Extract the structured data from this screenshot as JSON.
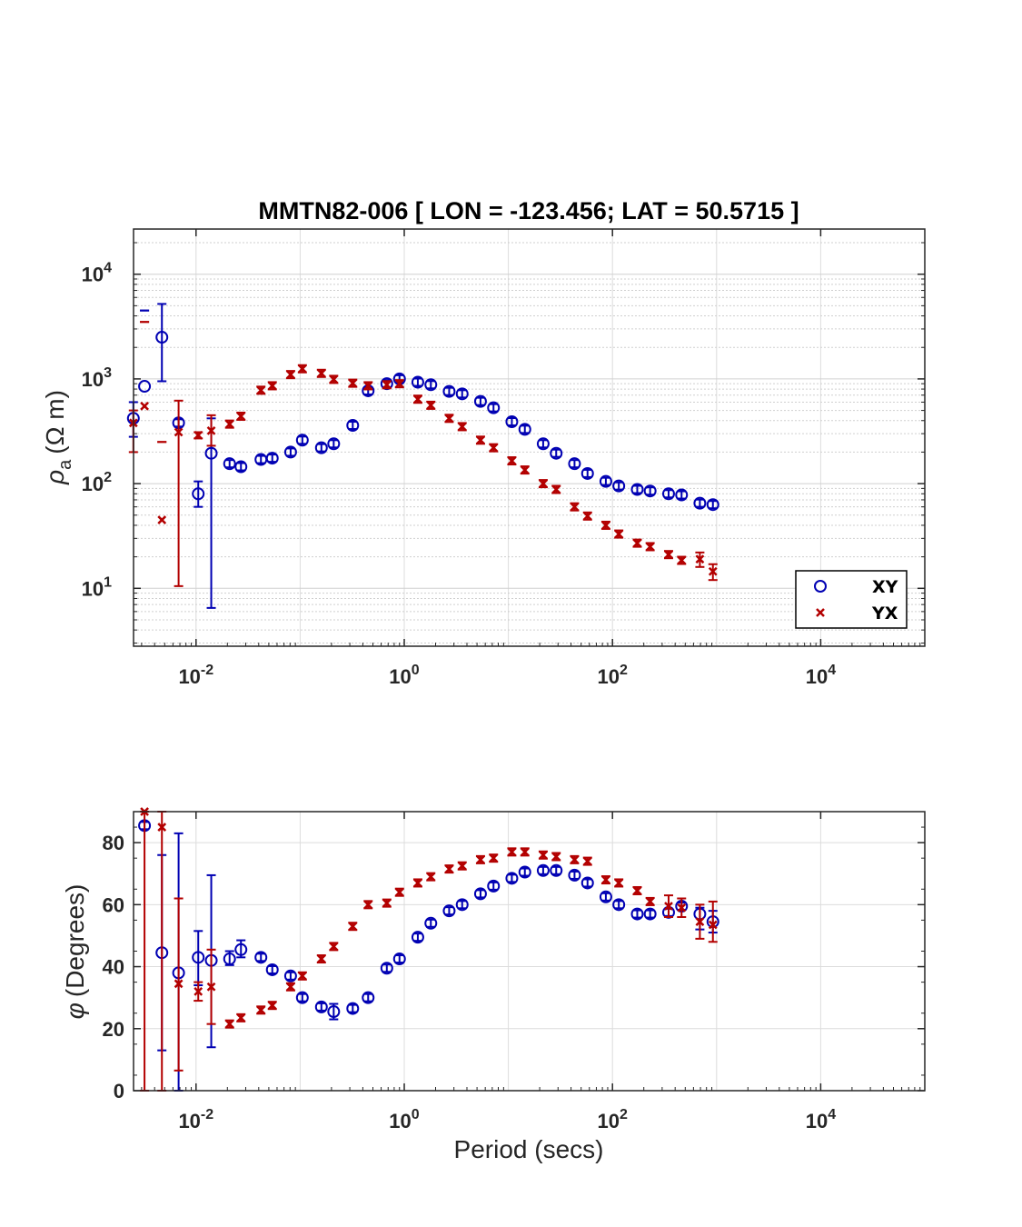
{
  "chart_data": [
    {
      "type": "scatter",
      "title": "MMTN82-006 [ LON = -123.456; LAT = 50.5715 ]",
      "ylabel": "ρa (Ω m)",
      "ylabel_parts": {
        "rho": "ρ",
        "sub": "a",
        "units": "(Ω m)"
      },
      "xlabel": "",
      "xscale": "log",
      "yscale": "log",
      "xlim": [
        0.00251,
        100000
      ],
      "ylim": [
        2.8,
        27000
      ],
      "xticks": [
        {
          "base": "10",
          "exp": "-2",
          "value": 0.01
        },
        {
          "base": "10",
          "exp": "0",
          "value": 1
        },
        {
          "base": "10",
          "exp": "2",
          "value": 100
        },
        {
          "base": "10",
          "exp": "4",
          "value": 10000
        }
      ],
      "yticks": [
        {
          "base": "10",
          "exp": "1",
          "value": 10
        },
        {
          "base": "10",
          "exp": "2",
          "value": 100
        },
        {
          "base": "10",
          "exp": "3",
          "value": 1000
        },
        {
          "base": "10",
          "exp": "4",
          "value": 10000
        }
      ],
      "grid": true,
      "legend": {
        "position": "lower-right",
        "entries": [
          "XY",
          "YX"
        ]
      },
      "series": [
        {
          "name": "XY",
          "color": "#0000b3",
          "marker": "circle",
          "points": [
            {
              "x": 0.0025,
              "y": 420,
              "lo": 280,
              "hi": 600
            },
            {
              "x": 0.0032,
              "y": 850,
              "lo": 4500,
              "hi": 4500
            },
            {
              "x": 0.0047,
              "y": 2500,
              "lo": 950,
              "hi": 5200
            },
            {
              "x": 0.0068,
              "y": 380
            },
            {
              "x": 0.0105,
              "y": 80,
              "lo": 60,
              "hi": 105
            },
            {
              "x": 0.014,
              "y": 195,
              "lo": 6.5,
              "hi": 420
            },
            {
              "x": 0.021,
              "y": 155
            },
            {
              "x": 0.027,
              "y": 145
            },
            {
              "x": 0.042,
              "y": 170
            },
            {
              "x": 0.054,
              "y": 175
            },
            {
              "x": 0.081,
              "y": 200
            },
            {
              "x": 0.105,
              "y": 260
            },
            {
              "x": 0.16,
              "y": 220
            },
            {
              "x": 0.21,
              "y": 240
            },
            {
              "x": 0.32,
              "y": 360
            },
            {
              "x": 0.45,
              "y": 770
            },
            {
              "x": 0.68,
              "y": 900
            },
            {
              "x": 0.9,
              "y": 1000
            },
            {
              "x": 1.35,
              "y": 930
            },
            {
              "x": 1.8,
              "y": 880
            },
            {
              "x": 2.7,
              "y": 760
            },
            {
              "x": 3.6,
              "y": 720
            },
            {
              "x": 5.4,
              "y": 610
            },
            {
              "x": 7.2,
              "y": 530
            },
            {
              "x": 10.8,
              "y": 390
            },
            {
              "x": 14.4,
              "y": 330
            },
            {
              "x": 21.6,
              "y": 240
            },
            {
              "x": 28.8,
              "y": 195
            },
            {
              "x": 43.2,
              "y": 155
            },
            {
              "x": 57.6,
              "y": 125
            },
            {
              "x": 86.4,
              "y": 105
            },
            {
              "x": 115,
              "y": 95
            },
            {
              "x": 173,
              "y": 88
            },
            {
              "x": 230,
              "y": 85
            },
            {
              "x": 346,
              "y": 80
            },
            {
              "x": 461,
              "y": 78
            },
            {
              "x": 691,
              "y": 65
            },
            {
              "x": 922,
              "y": 63
            }
          ]
        },
        {
          "name": "YX",
          "color": "#b30000",
          "marker": "x",
          "points": [
            {
              "x": 0.0025,
              "y": 380,
              "lo": 200,
              "hi": 500
            },
            {
              "x": 0.0032,
              "y": 550,
              "lo": 3500,
              "hi": 3500
            },
            {
              "x": 0.0047,
              "y": 45,
              "lo": 250,
              "hi": 250
            },
            {
              "x": 0.0068,
              "y": 310,
              "lo": 10.5,
              "hi": 620
            },
            {
              "x": 0.0105,
              "y": 290,
              "lo": 270,
              "hi": 310
            },
            {
              "x": 0.014,
              "y": 320,
              "lo": 230,
              "hi": 450
            },
            {
              "x": 0.021,
              "y": 370
            },
            {
              "x": 0.027,
              "y": 440
            },
            {
              "x": 0.042,
              "y": 780
            },
            {
              "x": 0.054,
              "y": 860
            },
            {
              "x": 0.081,
              "y": 1100
            },
            {
              "x": 0.105,
              "y": 1250
            },
            {
              "x": 0.16,
              "y": 1130
            },
            {
              "x": 0.21,
              "y": 990
            },
            {
              "x": 0.32,
              "y": 910
            },
            {
              "x": 0.45,
              "y": 860
            },
            {
              "x": 0.68,
              "y": 880
            },
            {
              "x": 0.9,
              "y": 900
            },
            {
              "x": 1.35,
              "y": 640
            },
            {
              "x": 1.8,
              "y": 560
            },
            {
              "x": 2.7,
              "y": 420
            },
            {
              "x": 3.6,
              "y": 350
            },
            {
              "x": 5.4,
              "y": 260
            },
            {
              "x": 7.2,
              "y": 220
            },
            {
              "x": 10.8,
              "y": 165
            },
            {
              "x": 14.4,
              "y": 135
            },
            {
              "x": 21.6,
              "y": 100
            },
            {
              "x": 28.8,
              "y": 88
            },
            {
              "x": 43.2,
              "y": 60
            },
            {
              "x": 57.6,
              "y": 49
            },
            {
              "x": 86.4,
              "y": 40
            },
            {
              "x": 115,
              "y": 33
            },
            {
              "x": 173,
              "y": 27
            },
            {
              "x": 230,
              "y": 25
            },
            {
              "x": 346,
              "y": 21
            },
            {
              "x": 461,
              "y": 18.5
            },
            {
              "x": 691,
              "y": 19,
              "lo": 16,
              "hi": 22
            },
            {
              "x": 922,
              "y": 14.5,
              "lo": 12,
              "hi": 17
            }
          ]
        }
      ]
    },
    {
      "type": "scatter",
      "title": "",
      "ylabel": "φ (Degrees)",
      "ylabel_parts": {
        "phi": "φ",
        "units": "(Degrees)"
      },
      "xlabel": "Period (secs)",
      "xscale": "log",
      "yscale": "linear",
      "xlim": [
        0.00251,
        100000
      ],
      "ylim": [
        0,
        90
      ],
      "xticks": [
        {
          "base": "10",
          "exp": "-2",
          "value": 0.01
        },
        {
          "base": "10",
          "exp": "0",
          "value": 1
        },
        {
          "base": "10",
          "exp": "2",
          "value": 100
        },
        {
          "base": "10",
          "exp": "4",
          "value": 10000
        }
      ],
      "yticks": [
        {
          "label": "0",
          "value": 0
        },
        {
          "label": "20",
          "value": 20
        },
        {
          "label": "40",
          "value": 40
        },
        {
          "label": "60",
          "value": 60
        },
        {
          "label": "80",
          "value": 80
        }
      ],
      "grid": true,
      "series": [
        {
          "name": "XY",
          "color": "#0000b3",
          "marker": "circle",
          "points": [
            {
              "x": 0.0032,
              "y": 85.5
            },
            {
              "x": 0.0047,
              "y": 44.5,
              "lo": 13,
              "hi": 76
            },
            {
              "x": 0.0068,
              "y": 38,
              "lo": 0,
              "hi": 83
            },
            {
              "x": 0.0105,
              "y": 43,
              "lo": 34,
              "hi": 51.5
            },
            {
              "x": 0.014,
              "y": 42,
              "lo": 14,
              "hi": 69.5
            },
            {
              "x": 0.021,
              "y": 42.5,
              "lo": 40.5,
              "hi": 45
            },
            {
              "x": 0.027,
              "y": 45.5,
              "lo": 43,
              "hi": 48.5
            },
            {
              "x": 0.042,
              "y": 43
            },
            {
              "x": 0.054,
              "y": 39
            },
            {
              "x": 0.081,
              "y": 37
            },
            {
              "x": 0.105,
              "y": 30
            },
            {
              "x": 0.16,
              "y": 27
            },
            {
              "x": 0.21,
              "y": 25.5,
              "lo": 23,
              "hi": 28
            },
            {
              "x": 0.32,
              "y": 26.5
            },
            {
              "x": 0.45,
              "y": 30
            },
            {
              "x": 0.68,
              "y": 39.5
            },
            {
              "x": 0.9,
              "y": 42.5
            },
            {
              "x": 1.35,
              "y": 49.5
            },
            {
              "x": 1.8,
              "y": 54
            },
            {
              "x": 2.7,
              "y": 58
            },
            {
              "x": 3.6,
              "y": 60
            },
            {
              "x": 5.4,
              "y": 63.5
            },
            {
              "x": 7.2,
              "y": 66
            },
            {
              "x": 10.8,
              "y": 68.5
            },
            {
              "x": 14.4,
              "y": 70.5
            },
            {
              "x": 21.6,
              "y": 71
            },
            {
              "x": 28.8,
              "y": 71
            },
            {
              "x": 43.2,
              "y": 69.5
            },
            {
              "x": 57.6,
              "y": 67
            },
            {
              "x": 86.4,
              "y": 62.5
            },
            {
              "x": 115,
              "y": 60
            },
            {
              "x": 173,
              "y": 57
            },
            {
              "x": 230,
              "y": 57
            },
            {
              "x": 346,
              "y": 57.5
            },
            {
              "x": 461,
              "y": 59.5
            },
            {
              "x": 691,
              "y": 57,
              "lo": 52,
              "hi": 59
            },
            {
              "x": 922,
              "y": 54.5,
              "lo": 51,
              "hi": 58
            }
          ]
        },
        {
          "name": "YX",
          "color": "#b30000",
          "marker": "x",
          "points": [
            {
              "x": 0.0032,
              "y": 90,
              "lo": 0,
              "hi": 90
            },
            {
              "x": 0.0047,
              "y": 85,
              "lo": 0,
              "hi": 90
            },
            {
              "x": 0.0068,
              "y": 34.5,
              "lo": 6.5,
              "hi": 62
            },
            {
              "x": 0.0105,
              "y": 32,
              "lo": 29,
              "hi": 35
            },
            {
              "x": 0.014,
              "y": 33.5,
              "lo": 21.5,
              "hi": 45.5
            },
            {
              "x": 0.021,
              "y": 21.5
            },
            {
              "x": 0.027,
              "y": 23.5
            },
            {
              "x": 0.042,
              "y": 26
            },
            {
              "x": 0.054,
              "y": 27.5
            },
            {
              "x": 0.081,
              "y": 33.5
            },
            {
              "x": 0.105,
              "y": 37
            },
            {
              "x": 0.16,
              "y": 42.5
            },
            {
              "x": 0.21,
              "y": 46.5
            },
            {
              "x": 0.32,
              "y": 53
            },
            {
              "x": 0.45,
              "y": 60
            },
            {
              "x": 0.68,
              "y": 60.5
            },
            {
              "x": 0.9,
              "y": 64
            },
            {
              "x": 1.35,
              "y": 67
            },
            {
              "x": 1.8,
              "y": 69
            },
            {
              "x": 2.7,
              "y": 71.5
            },
            {
              "x": 3.6,
              "y": 72.5
            },
            {
              "x": 5.4,
              "y": 74.5
            },
            {
              "x": 7.2,
              "y": 75
            },
            {
              "x": 10.8,
              "y": 77
            },
            {
              "x": 14.4,
              "y": 77
            },
            {
              "x": 21.6,
              "y": 76
            },
            {
              "x": 28.8,
              "y": 75.5
            },
            {
              "x": 43.2,
              "y": 74.5
            },
            {
              "x": 57.6,
              "y": 74
            },
            {
              "x": 86.4,
              "y": 68
            },
            {
              "x": 115,
              "y": 67
            },
            {
              "x": 173,
              "y": 64.5
            },
            {
              "x": 230,
              "y": 61
            },
            {
              "x": 346,
              "y": 59.5,
              "lo": 56,
              "hi": 63
            },
            {
              "x": 461,
              "y": 59,
              "lo": 56,
              "hi": 62
            },
            {
              "x": 691,
              "y": 54.5,
              "lo": 49,
              "hi": 60
            },
            {
              "x": 922,
              "y": 53.5,
              "lo": 48,
              "hi": 61
            }
          ]
        }
      ]
    }
  ]
}
